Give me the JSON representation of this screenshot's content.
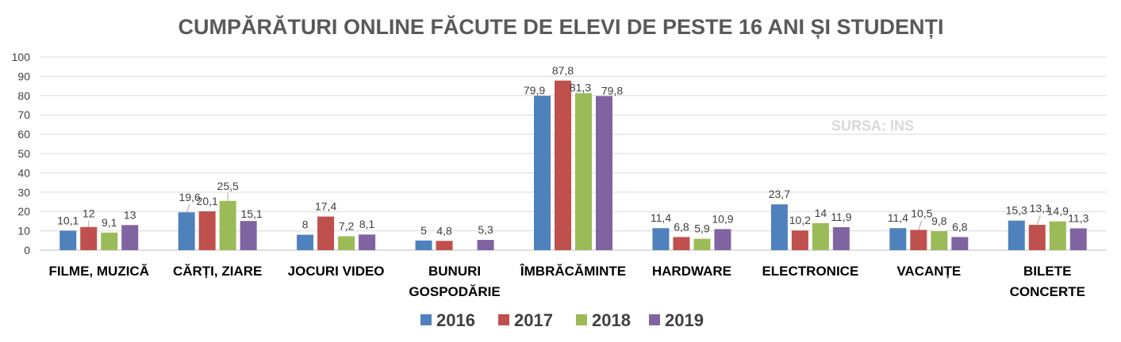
{
  "chart_data": {
    "type": "bar",
    "title": "CUMPĂRĂTURI ONLINE FĂCUTE DE ELEVI DE PESTE 16 ANI ȘI STUDENȚI",
    "source_note": "SURSA: INS",
    "categories": [
      [
        "FILME, MUZICĂ"
      ],
      [
        "CĂRȚI, ZIARE"
      ],
      [
        "JOCURI VIDEO"
      ],
      [
        "BUNURI",
        "GOSPODĂRIE"
      ],
      [
        "ÎMBRĂCĂMINTE"
      ],
      [
        "HARDWARE"
      ],
      [
        "ELECTRONICE"
      ],
      [
        "VACANȚE"
      ],
      [
        "BILETE",
        "CONCERTE"
      ]
    ],
    "series": [
      {
        "name": "2016",
        "color": "#4F81BD",
        "values": [
          10.1,
          19.6,
          8,
          5,
          79.9,
          11.4,
          23.7,
          11.4,
          15.3
        ]
      },
      {
        "name": "2017",
        "color": "#C0504D",
        "values": [
          12,
          20.1,
          17.4,
          4.8,
          87.8,
          6.8,
          10.2,
          10.5,
          13.1
        ]
      },
      {
        "name": "2018",
        "color": "#9BBB59",
        "values": [
          9.1,
          25.5,
          7.2,
          null,
          81.3,
          5.9,
          14,
          9.8,
          14.9
        ]
      },
      {
        "name": "2019",
        "color": "#8064A2",
        "values": [
          13,
          15.1,
          8.1,
          5.3,
          79.8,
          10.9,
          11.9,
          6.8,
          11.3
        ]
      }
    ],
    "data_labels": [
      [
        "10,1",
        "19,6",
        "8",
        "5",
        "79,9",
        "11,4",
        "23,7",
        "11,4",
        "15,3"
      ],
      [
        "12",
        "20,1",
        "17,4",
        "4,8",
        "87,8",
        "6,8",
        "10,2",
        "10,5",
        "13,1"
      ],
      [
        "9,1",
        "25,5",
        "7,2",
        "",
        "81,3",
        "5,9",
        "14",
        "9,8",
        "14,9"
      ],
      [
        "13",
        "15,1",
        "8,1",
        "5,3",
        "79,8",
        "10,9",
        "11,9",
        "6,8",
        "11,3"
      ]
    ],
    "ylim": [
      0,
      100
    ],
    "yticks": [
      0,
      10,
      20,
      30,
      40,
      50,
      60,
      70,
      80,
      90,
      100
    ],
    "grid": true,
    "legend_position": "bottom"
  }
}
